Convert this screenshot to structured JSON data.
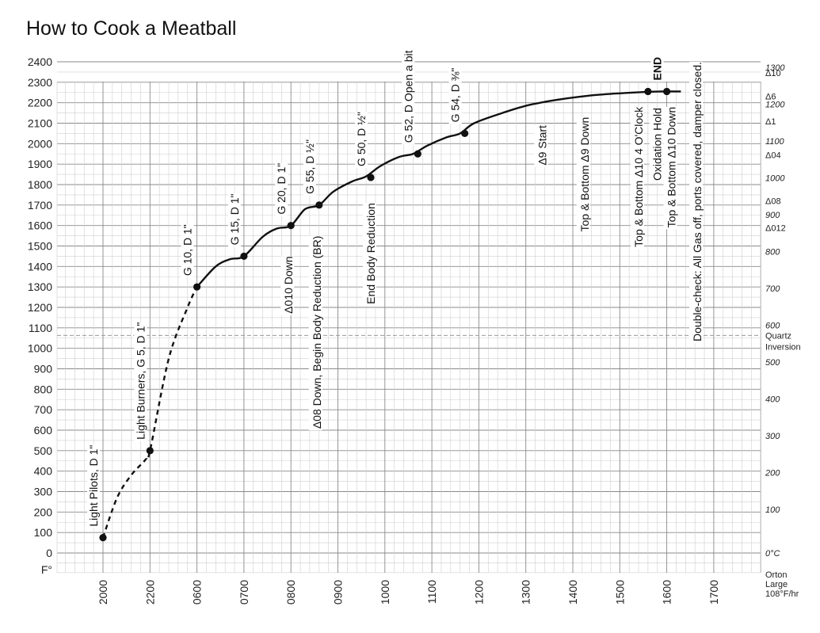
{
  "chart_data": {
    "type": "line",
    "title": "How to Cook a Meatball",
    "y_unit_label": "F°",
    "ylim": [
      0,
      2400
    ],
    "y_ticks": [
      0,
      100,
      200,
      300,
      400,
      500,
      600,
      700,
      800,
      900,
      1000,
      1100,
      1200,
      1300,
      1400,
      1500,
      1600,
      1700,
      1800,
      1900,
      2000,
      2100,
      2200,
      2300,
      2400
    ],
    "x_tick_labels": [
      "2000",
      "2200",
      "0600",
      "0700",
      "0800",
      "0900",
      "1000",
      "1100",
      "1200",
      "1300",
      "1400",
      "1500",
      "1600",
      "1700"
    ],
    "grid": true,
    "right_axis": {
      "celsius_labels": [
        {
          "label": "0°C",
          "f": 0
        },
        {
          "label": "100",
          "f": 212
        },
        {
          "label": "200",
          "f": 392
        },
        {
          "label": "300",
          "f": 572
        },
        {
          "label": "400",
          "f": 752
        },
        {
          "label": "500",
          "f": 932
        },
        {
          "label": "600",
          "f": 1112
        },
        {
          "label": "700",
          "f": 1292
        },
        {
          "label": "800",
          "f": 1472
        },
        {
          "label": "900",
          "f": 1652
        },
        {
          "label": "1000",
          "f": 1832
        },
        {
          "label": "1100",
          "f": 2012
        },
        {
          "label": "1200",
          "f": 2192
        },
        {
          "label": "1300",
          "f": 2372
        }
      ],
      "cone_labels": [
        {
          "label": "Δ10",
          "f": 2345
        },
        {
          "label": "Δ6",
          "f": 2232
        },
        {
          "label": "Δ1",
          "f": 2109
        },
        {
          "label": "Δ04",
          "f": 1945
        },
        {
          "label": "Δ08",
          "f": 1720
        },
        {
          "label": "Δ012",
          "f": 1590
        }
      ],
      "quartz_inversion": {
        "label_line1": "Quartz",
        "label_line2": "Inversion",
        "f": 1063
      },
      "orton_note": [
        "Orton",
        "Large",
        "108°F/hr"
      ]
    },
    "series": [
      {
        "style": "dashed",
        "x": [
          0,
          0.3,
          0.6,
          0.9,
          1.0,
          1.4,
          1.8,
          2.0
        ],
        "y": [
          75,
          270,
          380,
          455,
          500,
          950,
          1200,
          1300
        ]
      },
      {
        "style": "solid",
        "x": [
          2.0,
          2.4,
          2.7,
          3.0,
          3.4,
          3.7,
          4.0,
          4.3,
          4.6,
          4.9,
          5.3,
          5.6,
          5.9,
          6.3,
          6.6,
          6.9,
          7.3,
          7.6,
          7.9,
          8.5,
          9.0,
          9.5,
          10.0,
          10.5,
          11.0,
          11.5,
          11.9,
          12.3
        ],
        "y": [
          1300,
          1400,
          1435,
          1450,
          1545,
          1585,
          1600,
          1680,
          1700,
          1765,
          1815,
          1840,
          1890,
          1935,
          1950,
          1990,
          2030,
          2050,
          2100,
          2150,
          2185,
          2208,
          2225,
          2238,
          2246,
          2252,
          2255,
          2255
        ]
      }
    ],
    "points": [
      {
        "x": 0.0,
        "y": 75,
        "label": "Light Pilots, D 1\""
      },
      {
        "x": 1.0,
        "y": 500,
        "label": "Light Burners, G 5, D 1\""
      },
      {
        "x": 2.0,
        "y": 1300,
        "label": "G 10, D 1\""
      },
      {
        "x": 3.0,
        "y": 1450,
        "label": "G 15, D 1\""
      },
      {
        "x": 4.0,
        "y": 1600,
        "label": "G 20, D 1\""
      },
      {
        "x": 4.6,
        "y": 1700,
        "label": "G 55, D ½\""
      },
      {
        "x": 5.7,
        "y": 1835,
        "label": "G 50, D ½\""
      },
      {
        "x": 6.7,
        "y": 1950,
        "label": "G 52, D Open a bit"
      },
      {
        "x": 7.7,
        "y": 2050,
        "label": "G 54, D ⅜\""
      },
      {
        "x": 11.6,
        "y": 2255,
        "label": ""
      },
      {
        "x": 12.0,
        "y": 2255,
        "label": "END"
      }
    ],
    "annotations": [
      {
        "x": 4.0,
        "y_top": 1450,
        "text": "Δ010 Down"
      },
      {
        "x": 4.6,
        "y_top": 1550,
        "text": "Δ08 Down, Begin Body Reduction (BR)"
      },
      {
        "x": 5.75,
        "y_top": 1710,
        "text": "End Body Reduction"
      },
      {
        "x": 9.4,
        "y_top": 2090,
        "text": "Δ9 Start"
      },
      {
        "x": 10.3,
        "y_top": 2130,
        "text": "Top & Bottom Δ9 Down"
      },
      {
        "x": 11.45,
        "y_top": 2180,
        "text": "Top & Bottom Δ10 4 O'Clock"
      },
      {
        "x": 11.85,
        "y_top": 2175,
        "text": "Oxidation Hold"
      },
      {
        "x": 12.15,
        "y_top": 2180,
        "text": "Top & Bottom Δ10 Down"
      },
      {
        "x": 12.7,
        "y_top": 2400,
        "text": "Double-check:  All Gas off, ports covered, damper closed."
      }
    ]
  }
}
